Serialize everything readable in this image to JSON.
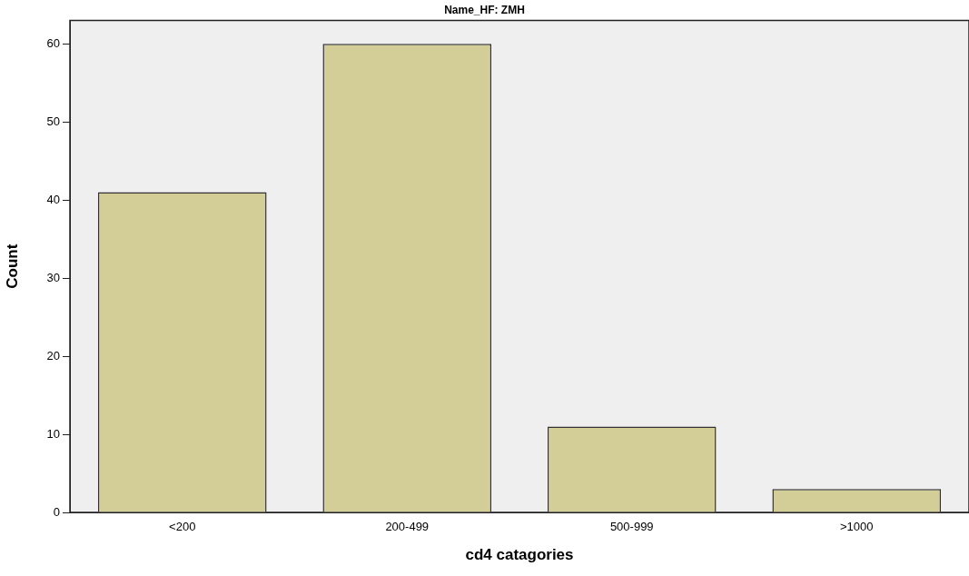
{
  "chart_data": {
    "type": "bar",
    "title": "Name_HF: ZMH",
    "xlabel": "cd4 catagories",
    "ylabel": "Count",
    "categories": [
      "<200",
      "200-499",
      "500-999",
      ">1000"
    ],
    "values": [
      41,
      60,
      11,
      3
    ],
    "color": "#d3ce97",
    "ylim": [
      0,
      63
    ],
    "yticks": [
      0,
      10,
      20,
      30,
      40,
      50,
      60
    ],
    "grid": false,
    "legend": false
  }
}
